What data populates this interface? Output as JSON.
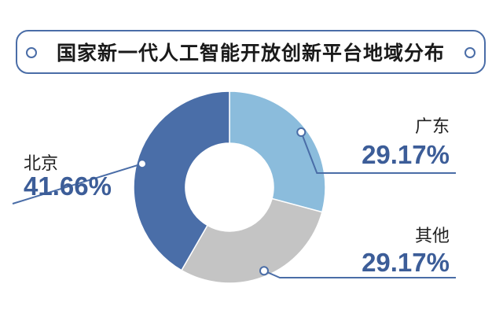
{
  "title": "国家新一代人工智能开放创新平台地域分布",
  "chart_data": {
    "type": "pie",
    "donut": true,
    "title": "国家新一代人工智能开放创新平台地域分布",
    "slices": [
      {
        "label": "广东",
        "value": 29.17,
        "display": "29.17%",
        "color": "#8bbcdc"
      },
      {
        "label": "其他",
        "value": 29.17,
        "display": "29.17%",
        "color": "#c4c4c4"
      },
      {
        "label": "北京",
        "value": 41.66,
        "display": "41.66%",
        "color": "#4a6ea8"
      }
    ]
  },
  "colors": {
    "accent": "#4a6da7",
    "pct_text": "#3c5d98"
  }
}
